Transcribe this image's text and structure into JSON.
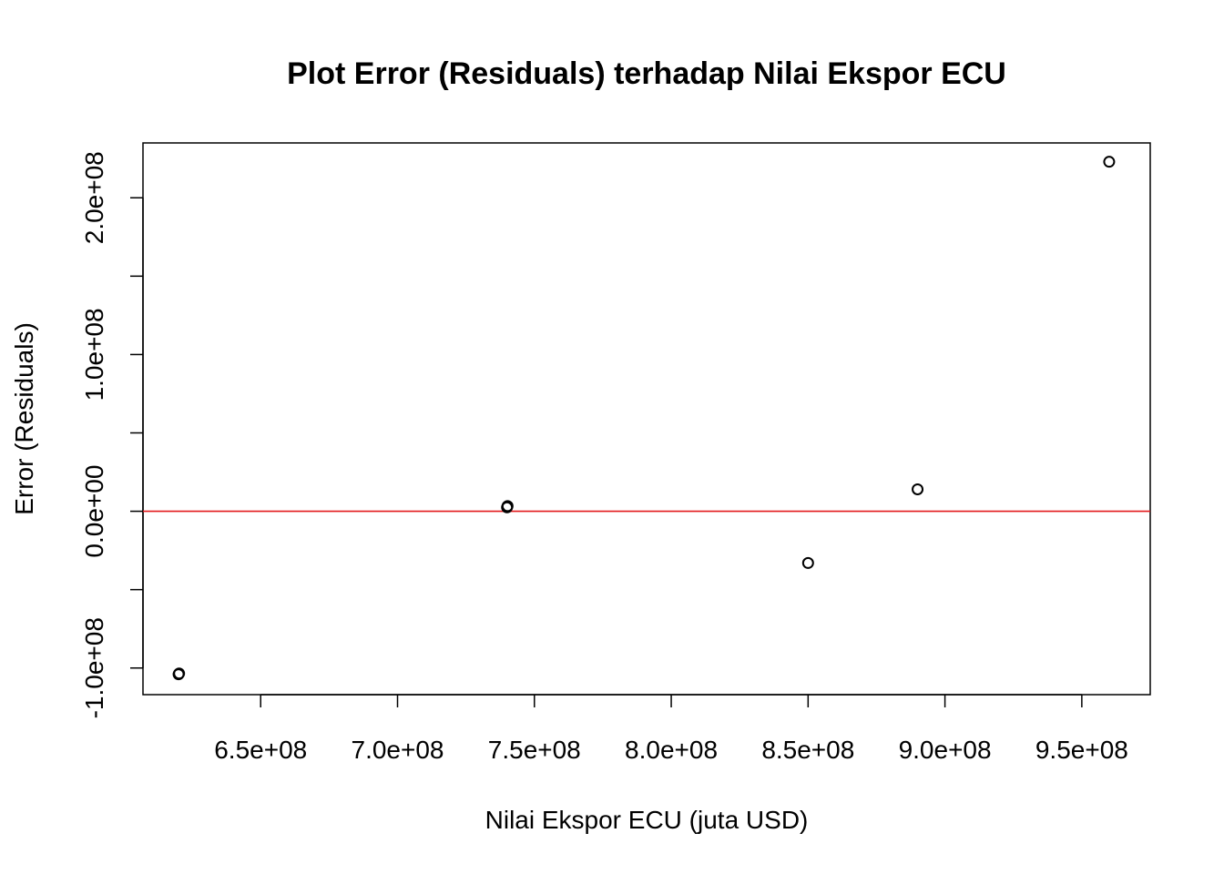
{
  "chart_data": {
    "type": "scatter",
    "title": "Plot Error (Residuals) terhadap Nilai Ekspor ECU",
    "xlabel": "Nilai Ekspor ECU (juta USD)",
    "ylabel": "Error (Residuals)",
    "xlim": [
      607000000,
      975000000
    ],
    "ylim": [
      -117000000,
      235000000
    ],
    "x_ticks": [
      650000000,
      700000000,
      750000000,
      800000000,
      850000000,
      900000000,
      950000000
    ],
    "x_tick_labels": [
      "6.5e+08",
      "7.0e+08",
      "7.5e+08",
      "8.0e+08",
      "8.5e+08",
      "9.0e+08",
      "9.5e+08"
    ],
    "y_ticks": [
      -100000000,
      -50000000,
      0,
      50000000,
      100000000,
      150000000,
      200000000
    ],
    "y_tick_labels": [
      "-1.0e+08",
      "",
      "0.0e+00",
      "",
      "1.0e+08",
      "",
      "2.0e+08"
    ],
    "points": [
      {
        "x": 620000000,
        "y": -104000000
      },
      {
        "x": 620200000,
        "y": -103500000
      },
      {
        "x": 740000000,
        "y": 2500000
      },
      {
        "x": 740200000,
        "y": 3300000
      },
      {
        "x": 850000000,
        "y": -33000000
      },
      {
        "x": 890000000,
        "y": 14000000
      },
      {
        "x": 960000000,
        "y": 223000000
      }
    ],
    "reference_line": {
      "y": 0,
      "color": "#e31a1c"
    },
    "grid": false,
    "point_color": "#000000"
  }
}
